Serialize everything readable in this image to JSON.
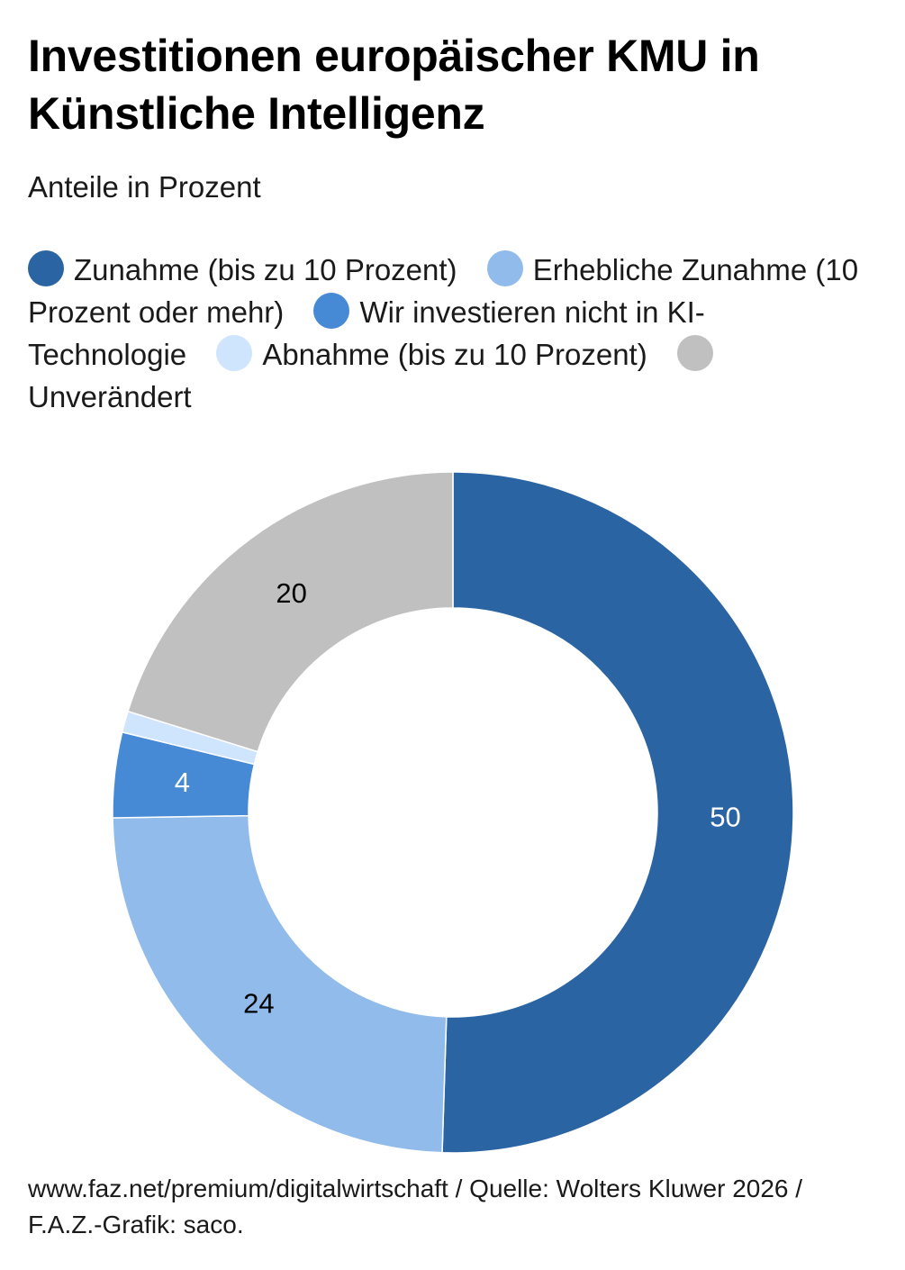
{
  "title": "Investitionen europäischer KMU in Künstliche Intelligenz",
  "subtitle": "Anteile in Prozent",
  "footer": "www.faz.net/premium/digitalwirtschaft / Quelle: Wolters Kluwer 2026 / F.A.Z.-Grafik: saco.",
  "colors": {
    "zunahme": "#2b64a3",
    "erhebliche": "#91bbeb",
    "nicht": "#468ad6",
    "abnahme": "#cfe4fd",
    "unveraendert": "#c0c0c0",
    "label_dark_bg": "#ffffff",
    "label_light_bg": "#000000"
  },
  "chart_data": {
    "type": "pie",
    "variant": "donut",
    "title": "Investitionen europäischer KMU in Künstliche Intelligenz",
    "subtitle": "Anteile in Prozent",
    "unit": "Prozent",
    "start": "12 o'clock, clockwise",
    "slices": [
      {
        "name": "Zunahme (bis zu 10 Prozent)",
        "value": 50,
        "label": "50",
        "color": "#2b64a3",
        "label_color": "#ffffff"
      },
      {
        "name": "Erhebliche Zunahme (10 Prozent oder mehr)",
        "value": 24,
        "label": "24",
        "color": "#91bbeb",
        "label_color": "#000000"
      },
      {
        "name": "Wir investieren nicht in KI-Technologie",
        "value": 4,
        "label": "4",
        "color": "#468ad6",
        "label_color": "#ffffff"
      },
      {
        "name": "Abnahme (bis zu 10 Prozent)",
        "value": 1,
        "label": "",
        "color": "#cfe4fd",
        "label_color": "#000000"
      },
      {
        "name": "Unverändert",
        "value": 20,
        "label": "20",
        "color": "#c0c0c0",
        "label_color": "#000000"
      }
    ]
  }
}
